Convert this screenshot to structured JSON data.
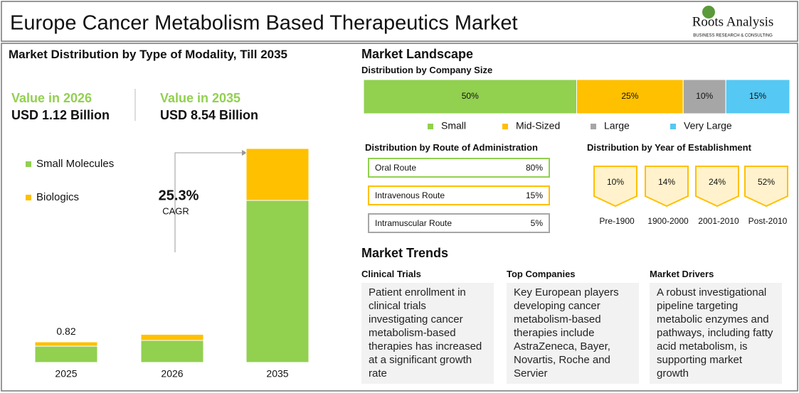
{
  "header": {
    "title": "Europe Cancer Metabolism Based Therapeutics Market",
    "logo": "Roots Analysis",
    "logo_tagline": "BUSINESS RESEARCH & CONSULTING"
  },
  "modality": {
    "title": "Market Distribution by Type of Modality, Till 2035",
    "kpis": [
      {
        "label": "Value in 2026",
        "value": "USD 1.12 Billion"
      },
      {
        "label": "Value in 2035",
        "value": "USD 8.54 Billion"
      }
    ],
    "cagr": "25.3%",
    "cagr_label": "CAGR"
  },
  "chart_data": [
    {
      "type": "bar",
      "stacked": true,
      "categories": [
        "2025",
        "2026",
        "2035"
      ],
      "series": [
        {
          "name": "Small Molecules",
          "color": "#92d050",
          "values": [
            0.65,
            0.88,
            6.47
          ]
        },
        {
          "name": "Biologics",
          "color": "#ffc000",
          "values": [
            0.17,
            0.24,
            2.07
          ]
        }
      ],
      "annotations": [
        {
          "text": "0.82",
          "category": "2025"
        }
      ]
    },
    {
      "type": "hbar100",
      "title": "Distribution by Company Size",
      "series": [
        {
          "name": "Small",
          "color": "#92d050",
          "values": [
            50
          ],
          "value_labels": [
            "50%"
          ]
        },
        {
          "name": "Mid-Sized",
          "color": "#ffc000",
          "values": [
            25
          ],
          "value_labels": [
            "25%"
          ]
        },
        {
          "name": "Large",
          "color": "#a6a6a6",
          "values": [
            10
          ],
          "value_labels": [
            "10%"
          ]
        },
        {
          "name": "Very Large",
          "color": "#55c8f3",
          "values": [
            15
          ],
          "value_labels": [
            "15%"
          ]
        }
      ]
    }
  ],
  "landscape": {
    "title": "Market Landscape",
    "route": {
      "title": "Distribution by Route of Administration",
      "items": [
        {
          "label": "Oral Route",
          "value": "80%"
        },
        {
          "label": "Intravenous Route",
          "value": "15%"
        },
        {
          "label": "Intramuscular Route",
          "value": "5%"
        }
      ]
    },
    "year": {
      "title": "Distribution by Year of Establishment",
      "items": [
        {
          "label": "Pre-1900",
          "value": "10%"
        },
        {
          "label": "1900-2000",
          "value": "14%"
        },
        {
          "label": "2001-2010",
          "value": "24%"
        },
        {
          "label": "Post-2010",
          "value": "52%"
        }
      ]
    }
  },
  "trends": {
    "title": "Market Trends",
    "columns": [
      {
        "heading": "Clinical Trials",
        "text": "Patient enrollment in clinical trials investigating cancer metabolism-based therapies has increased at a significant growth rate"
      },
      {
        "heading": "Top Companies",
        "text": "Key European players developing cancer metabolism-based therapies include AstraZeneca, Bayer, Novartis, Roche and Servier"
      },
      {
        "heading": "Market Drivers",
        "text": "A robust investigational pipeline targeting metabolic enzymes and pathways, including fatty acid metabolism, is supporting market growth"
      }
    ]
  }
}
